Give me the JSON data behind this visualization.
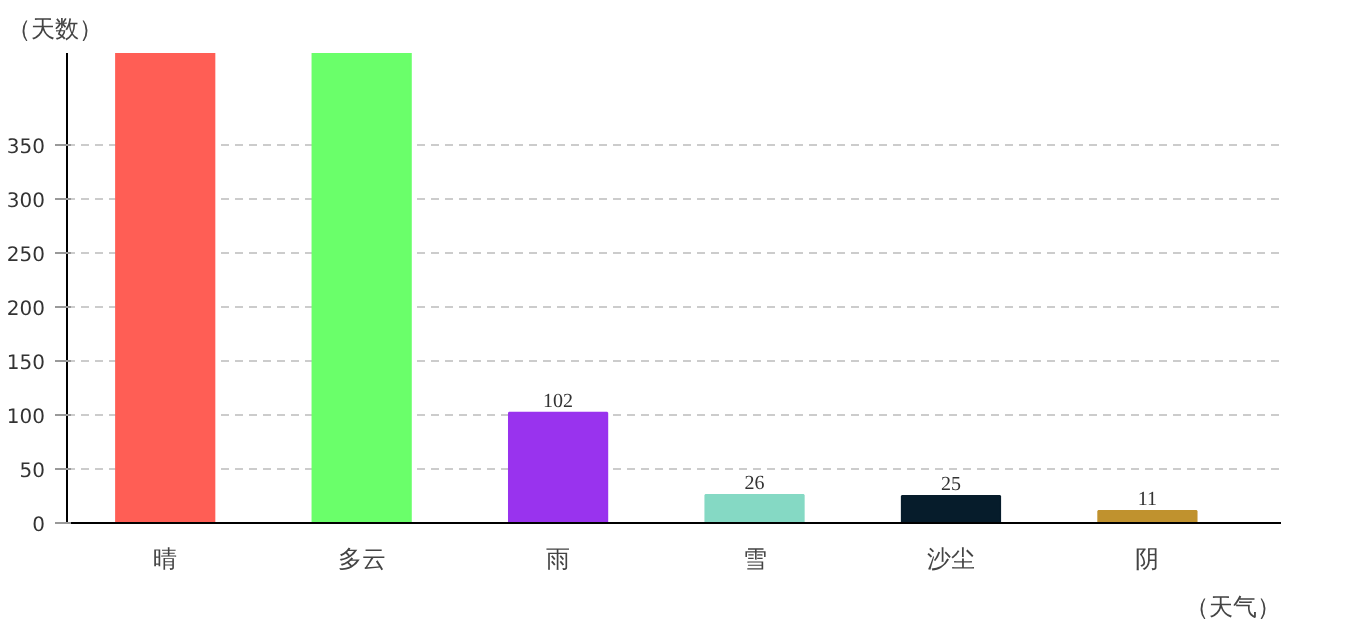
{
  "chart_data": {
    "type": "bar",
    "xlabel": "（天气）",
    "ylabel": "（天数）",
    "categories": [
      "晴",
      "多云",
      "雨",
      "雪",
      "沙尘",
      "阴"
    ],
    "values": [
      435,
      435,
      102,
      26,
      25,
      11
    ],
    "colors": [
      "#ff5e55",
      "#6aff6a",
      "#9933ee",
      "#85d9c4",
      "#061c2b",
      "#c0922e"
    ],
    "value_labels": [
      null,
      null,
      "102",
      "26",
      "25",
      "11"
    ],
    "ylim": [
      0,
      435
    ],
    "yticks": [
      0,
      50,
      100,
      150,
      200,
      250,
      300,
      350
    ],
    "grid": "y"
  }
}
